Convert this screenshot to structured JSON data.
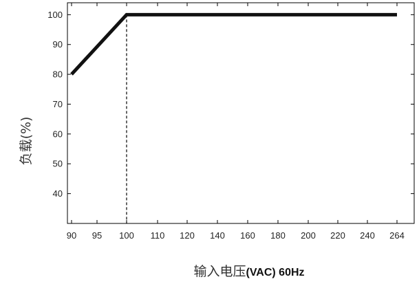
{
  "chart_data": {
    "type": "line",
    "title": "",
    "xlabel": "输入电压(VAC) 60Hz",
    "xlabel_parts": {
      "cjk": "输入电压",
      "latin": "(VAC) 60Hz"
    },
    "ylabel": "负载(%)",
    "x_tick_labels": [
      "90",
      "95",
      "100",
      "110",
      "120",
      "140",
      "160",
      "180",
      "200",
      "220",
      "240",
      "264"
    ],
    "y_tick_labels": [
      "40",
      "50",
      "60",
      "70",
      "80",
      "90",
      "100"
    ],
    "ylim": [
      30,
      104
    ],
    "grid": false,
    "series": [
      {
        "points": [
          {
            "x": "90",
            "y": 80
          },
          {
            "x": "100",
            "y": 100
          },
          {
            "x": "264",
            "y": 100
          }
        ]
      }
    ],
    "reference_lines": [
      {
        "orientation": "vertical",
        "x": "100",
        "style": "dashed",
        "from_y": 30,
        "to_y": 100
      }
    ]
  }
}
